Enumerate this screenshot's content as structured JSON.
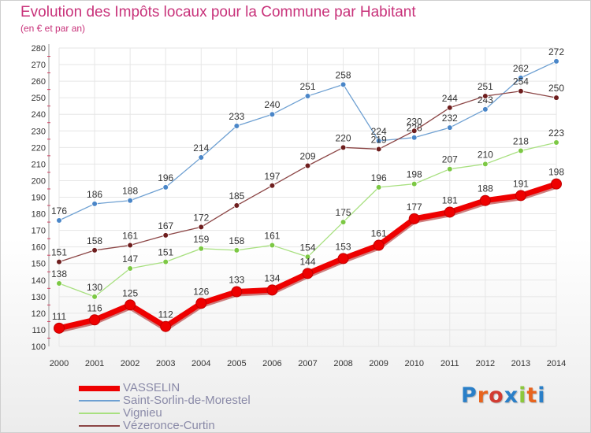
{
  "header": {
    "title": "Evolution des Impôts locaux pour la Commune par Habitant",
    "subtitle": "(en € et par an)"
  },
  "logo": {
    "text": "Proxiti",
    "letter_colors": [
      "#2a7fc8",
      "#e8641e",
      "#d23c32",
      "#2a7fc8",
      "#8cc83c",
      "#e8641e",
      "#2a7fc8"
    ]
  },
  "chart_data": {
    "type": "line",
    "title": "Evolution des Impôts locaux pour la Commune par Habitant",
    "subtitle": "(en € et par an)",
    "x": [
      "2000",
      "2001",
      "2002",
      "2003",
      "2004",
      "2005",
      "2006",
      "2007",
      "2008",
      "2009",
      "2010",
      "2011",
      "2012",
      "2013",
      "2014"
    ],
    "y_ticks": [
      "100",
      "110",
      "120",
      "130",
      "140",
      "150",
      "160",
      "170",
      "180",
      "190",
      "200",
      "210",
      "220",
      "230",
      "240",
      "250",
      "260",
      "270",
      "280"
    ],
    "ylim": [
      100,
      280
    ],
    "grid": true,
    "legend_position": "bottom-left",
    "series": [
      {
        "name": "VASSELIN",
        "color": "#ee0000",
        "emphasis": true,
        "values": [
          111,
          116,
          125,
          112,
          126,
          133,
          134,
          144,
          153,
          161,
          177,
          181,
          188,
          191,
          198
        ],
        "labels": [
          "111",
          "116",
          "125",
          "112",
          "126",
          "133",
          "134",
          "144",
          "153",
          "161",
          "177",
          "181",
          "188",
          "191",
          "198"
        ]
      },
      {
        "name": "Saint-Sorlin-de-Morestel",
        "color": "#6ea0d2",
        "point_color": "#4a86c8",
        "values": [
          176,
          186,
          188,
          196,
          214,
          233,
          240,
          251,
          258,
          224,
          226,
          232,
          243,
          262,
          272
        ],
        "labels": [
          "176",
          "186",
          "188",
          "196",
          "214",
          "233",
          "240",
          "251",
          "258",
          "224",
          "226",
          "232",
          "243",
          "262",
          "272"
        ]
      },
      {
        "name": "Vignieu",
        "color": "#a8e080",
        "point_color": "#7cc844",
        "values": [
          138,
          130,
          147,
          151,
          159,
          158,
          161,
          154,
          175,
          196,
          198,
          207,
          210,
          218,
          223
        ],
        "labels": [
          "138",
          "130",
          "147",
          "151",
          "159",
          "158",
          "161",
          "154",
          "175",
          "196",
          "198",
          "207",
          "210",
          "218",
          "223"
        ]
      },
      {
        "name": "Vézeronce-Curtin",
        "color": "#8c4646",
        "point_color": "#6e1e1e",
        "values": [
          151,
          158,
          161,
          167,
          172,
          185,
          197,
          209,
          220,
          219,
          230,
          244,
          251,
          254,
          250
        ],
        "labels": [
          "151",
          "158",
          "161",
          "167",
          "172",
          "185",
          "197",
          "209",
          "220",
          "219",
          "230",
          "244",
          "251",
          "254",
          "250"
        ]
      }
    ]
  }
}
